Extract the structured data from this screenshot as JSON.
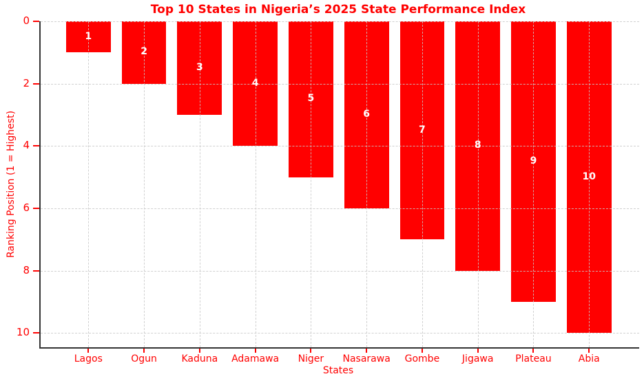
{
  "chart_data": {
    "type": "bar",
    "title": "Top 10 States in Nigeria’s 2025 State Performance Index",
    "xlabel": "States",
    "ylabel": "Ranking Position (1 = Highest)",
    "categories": [
      "Lagos",
      "Ogun",
      "Kaduna",
      "Adamawa",
      "Niger",
      "Nasarawa",
      "Gombe",
      "Jigawa",
      "Plateau",
      "Abia"
    ],
    "values": [
      1,
      2,
      3,
      4,
      5,
      6,
      7,
      8,
      9,
      10
    ],
    "bar_labels": [
      "1",
      "2",
      "3",
      "4",
      "5",
      "6",
      "7",
      "8",
      "9",
      "10"
    ],
    "y_ticks": [
      0,
      2,
      4,
      6,
      8,
      10
    ],
    "y_axis_inverted": true,
    "ylim": [
      0,
      10.46
    ],
    "grid": {
      "style": "dashed",
      "horizontal": true,
      "vertical": true,
      "over_bars": true
    },
    "legend": null,
    "colors": {
      "bar": "#ff0000",
      "text": "#ff0000",
      "bar_label": "#ffffff",
      "grid": "#c8c8c8",
      "spine": "#333333",
      "background": "#ffffff"
    }
  }
}
